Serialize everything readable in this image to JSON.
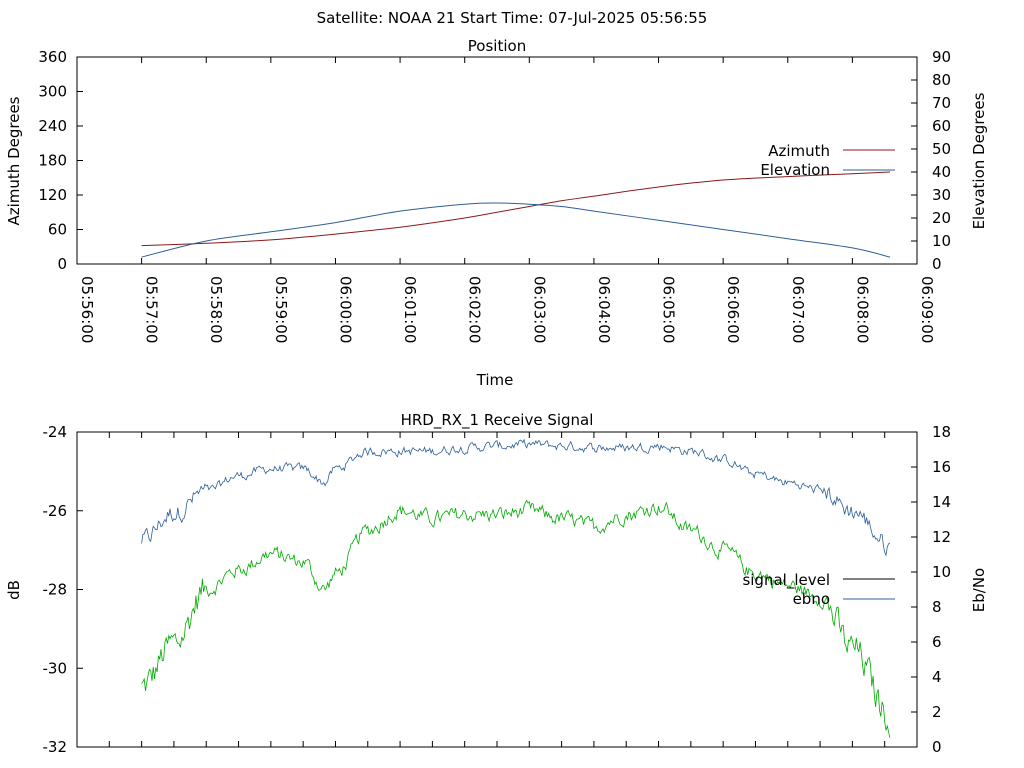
{
  "header": {
    "title": "Satellite: NOAA 21    Start Time: 07-Jul-2025 05:56:55"
  },
  "colors": {
    "azimuth": "#8b1a1a",
    "elevation": "#2f5f96",
    "signal_level": "#00aa00",
    "ebno": "#2f5f96",
    "signal_level_legend": "#000000"
  },
  "chart_data": [
    {
      "type": "line",
      "title": "Position",
      "xlabel": "Time",
      "ylabel": "Azimuth Degrees",
      "y2label": "Elevation Degrees",
      "xlim": [
        "05:56:00",
        "06:09:00"
      ],
      "ylim": [
        0,
        360
      ],
      "y2lim": [
        0,
        90
      ],
      "x_ticks": [
        "05:56:00",
        "05:57:00",
        "05:58:00",
        "05:59:00",
        "06:00:00",
        "06:01:00",
        "06:02:00",
        "06:03:00",
        "06:04:00",
        "06:05:00",
        "06:06:00",
        "06:07:00",
        "06:08:00",
        "06:09:00"
      ],
      "y_ticks": [
        "0",
        "60",
        "120",
        "180",
        "240",
        "300",
        "360"
      ],
      "y2_ticks": [
        "0",
        "10",
        "20",
        "30",
        "40",
        "50",
        "60",
        "70",
        "80",
        "90"
      ],
      "legend_position": "right",
      "x": [
        "05:57:00",
        "05:58:00",
        "05:59:00",
        "06:00:00",
        "06:01:00",
        "06:02:00",
        "06:02:30",
        "06:03:00",
        "06:03:30",
        "06:04:00",
        "06:05:00",
        "06:06:00",
        "06:07:00",
        "06:08:00",
        "06:08:35"
      ],
      "series": [
        {
          "name": "Azimuth",
          "axis": "y",
          "values": [
            32,
            36,
            42,
            52,
            64,
            80,
            90,
            100,
            110,
            118,
            134,
            146,
            152,
            157,
            160
          ]
        },
        {
          "name": "Elevation",
          "axis": "y2",
          "values": [
            3,
            10,
            14,
            18,
            23,
            26,
            26.5,
            26,
            25,
            23,
            19,
            15,
            11,
            7,
            3
          ]
        }
      ]
    },
    {
      "type": "line",
      "title": "HRD_RX_1 Receive Signal",
      "ylabel": "dB",
      "y2label": "Eb/No",
      "ylim": [
        -32,
        -24
      ],
      "y2lim": [
        0,
        18
      ],
      "y_ticks": [
        "-24",
        "-26",
        "-28",
        "-30",
        "-32"
      ],
      "y2_ticks": [
        "0",
        "2",
        "4",
        "6",
        "8",
        "10",
        "12",
        "14",
        "16",
        "18"
      ],
      "legend_position": "right",
      "x": [
        "05:57:00",
        "05:57:30",
        "05:58:00",
        "05:58:30",
        "05:59:00",
        "05:59:30",
        "05:59:50",
        "06:00:00",
        "06:00:30",
        "06:01:00",
        "06:01:30",
        "06:02:00",
        "06:02:30",
        "06:03:00",
        "06:03:30",
        "06:04:00",
        "06:04:30",
        "06:05:00",
        "06:05:30",
        "06:06:00",
        "06:06:30",
        "06:07:00",
        "06:07:30",
        "06:08:00",
        "06:08:35"
      ],
      "series": [
        {
          "name": "signal_level",
          "axis": "y",
          "values": [
            -30.5,
            -29.4,
            -28.0,
            -27.5,
            -27.1,
            -27.3,
            -28.0,
            -27.6,
            -26.5,
            -26.0,
            -26.2,
            -26.1,
            -26.1,
            -26.0,
            -26.2,
            -26.4,
            -26.1,
            -25.9,
            -26.5,
            -27.0,
            -27.6,
            -27.9,
            -28.2,
            -29.5,
            -31.2
          ]
        },
        {
          "name": "ebno",
          "axis": "y2",
          "values": [
            11.8,
            13.4,
            14.6,
            15.5,
            15.9,
            15.9,
            15.1,
            15.9,
            16.9,
            16.9,
            16.9,
            17.1,
            17.2,
            17.3,
            17.2,
            17.1,
            17.1,
            17.2,
            16.9,
            16.4,
            15.6,
            15.1,
            14.7,
            13.5,
            11.5
          ]
        }
      ]
    }
  ]
}
